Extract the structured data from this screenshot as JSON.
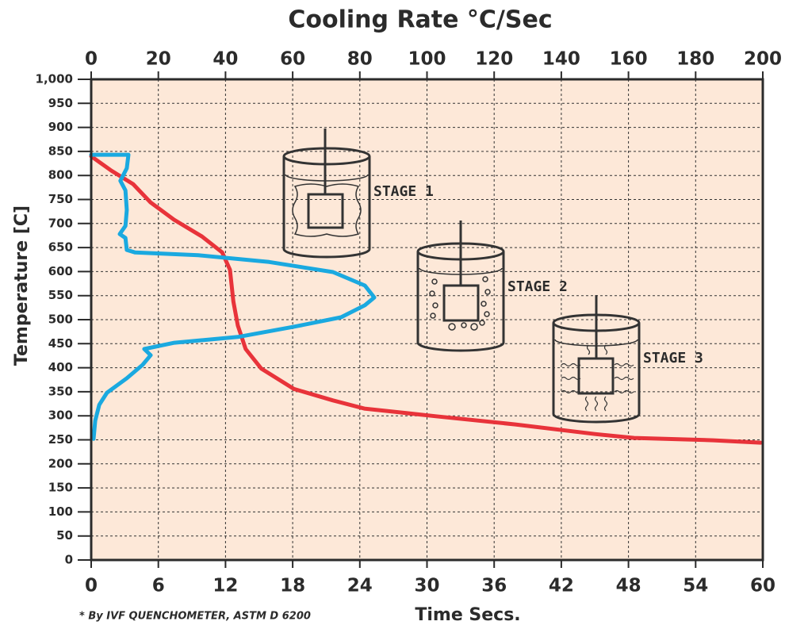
{
  "chart_data": {
    "type": "line",
    "title": "Cooling Rate  °C/Sec",
    "x_label": "Time Secs.",
    "y_label": "Temperature [C]",
    "footnote": "* By IVF QUENCHOMETER, ASTM D 6200",
    "annotations": [
      "STAGE 1",
      "STAGE 2",
      "STAGE 3"
    ],
    "xlim": [
      0,
      60
    ],
    "xticks": [
      0,
      6,
      12,
      18,
      24,
      30,
      36,
      42,
      48,
      54,
      60
    ],
    "x2lim": [
      0,
      200
    ],
    "x2ticks": [
      0,
      20,
      40,
      60,
      80,
      100,
      120,
      140,
      160,
      180,
      200
    ],
    "ylim": [
      0,
      1000
    ],
    "yticks": [
      0,
      50,
      100,
      150,
      200,
      250,
      300,
      350,
      400,
      450,
      500,
      550,
      600,
      650,
      700,
      750,
      800,
      850,
      900,
      950,
      {
        "value": 1000,
        "label": "1,000"
      }
    ],
    "grid": true,
    "series": [
      {
        "color": "#e8333a",
        "x": [
          0,
          1.8,
          3.75,
          5.3,
          7.4,
          9.9,
          11.7,
          12.4,
          12.7,
          13.1,
          13.8,
          15.2,
          18.1,
          21.6,
          24.4,
          30.8,
          37.9,
          45,
          48.5,
          55.6,
          59.8
        ],
        "values": [
          840,
          810,
          782,
          744,
          708,
          673,
          640,
          604,
          538,
          488,
          439,
          398,
          356,
          332,
          315,
          299,
          282,
          262,
          254,
          249,
          244
        ]
      },
      {
        "color": "#1aa9e0",
        "axis": "x2",
        "x": [
          0.7,
          1.2,
          2.4,
          4.7,
          10.6,
          15.3,
          17.7,
          15.8,
          24.8,
          43.7,
          60.2,
          74.4,
          81.5,
          84.3,
          81.5,
          72,
          53,
          31.9,
          13,
          10.6,
          10.2,
          8.5,
          10.2,
          10.6,
          10.2,
          8.7,
          10.6,
          11.1,
          0
        ],
        "values": [
          252,
          290,
          323,
          348,
          378,
          406,
          426,
          439,
          452,
          464,
          485,
          505,
          530,
          546,
          571,
          599,
          620,
          634,
          640,
          645,
          670,
          678,
          695,
          728,
          769,
          789,
          815,
          843,
          843
        ]
      }
    ]
  }
}
